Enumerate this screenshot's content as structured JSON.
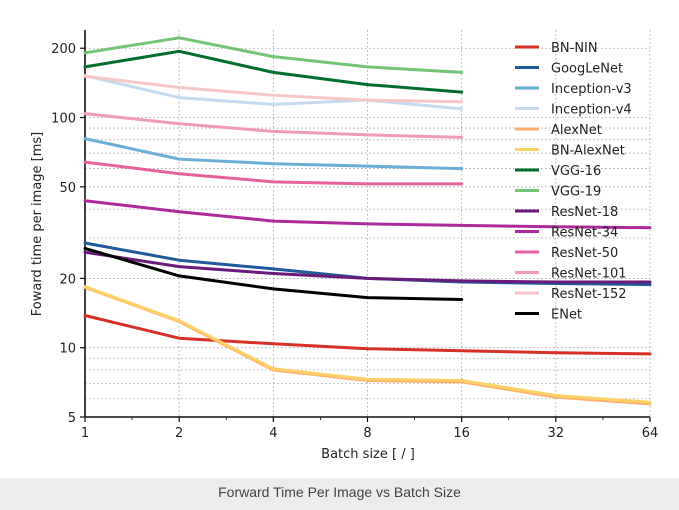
{
  "caption": "Forward Time Per Image vs Batch Size",
  "chart_data": {
    "type": "line",
    "xlabel": "Batch size [ / ]",
    "ylabel": "Foward time per image [ms]",
    "x_scale": "log2",
    "y_scale": "log",
    "x_ticks": [
      1,
      2,
      4,
      8,
      16,
      32,
      64
    ],
    "y_ticks": [
      5,
      10,
      20,
      50,
      100,
      200
    ],
    "xlim": [
      1,
      64
    ],
    "ylim": [
      5,
      240
    ],
    "grid": true,
    "legend_position": "right",
    "series": [
      {
        "name": "BN-NIN",
        "color": "#d73027",
        "x": [
          1,
          2,
          4,
          8,
          16,
          32,
          64
        ],
        "values": [
          13.8,
          11.0,
          10.4,
          9.9,
          9.7,
          9.5,
          9.4
        ]
      },
      {
        "name": "GoogLeNet",
        "color": "#1f5a9c",
        "x": [
          1,
          2,
          4,
          8,
          16,
          32,
          64
        ],
        "values": [
          28.5,
          24.0,
          22.0,
          20.0,
          19.3,
          19.0,
          18.8
        ]
      },
      {
        "name": "Inception-v3",
        "color": "#6baed6",
        "x": [
          1,
          2,
          4,
          8,
          16
        ],
        "values": [
          81,
          66,
          63,
          61.5,
          60
        ]
      },
      {
        "name": "Inception-v4",
        "color": "#c6dbef",
        "x": [
          1,
          2,
          4,
          8,
          16
        ],
        "values": [
          152,
          122,
          114,
          119,
          109
        ]
      },
      {
        "name": "AlexNet",
        "color": "#fdae6b",
        "x": [
          1,
          2,
          4,
          8,
          16,
          32,
          64
        ],
        "values": [
          18.3,
          13.0,
          8.0,
          7.2,
          7.1,
          6.1,
          5.7
        ]
      },
      {
        "name": "BN-AlexNet",
        "color": "#fdd168",
        "x": [
          1,
          2,
          4,
          8,
          16,
          32,
          64
        ],
        "values": [
          18.4,
          13.1,
          8.1,
          7.3,
          7.2,
          6.2,
          5.8
        ]
      },
      {
        "name": "VGG-16",
        "color": "#006d2c",
        "x": [
          1,
          2,
          4,
          8,
          16
        ],
        "values": [
          166,
          194,
          157,
          139,
          129
        ]
      },
      {
        "name": "VGG-19",
        "color": "#74c476",
        "x": [
          1,
          2,
          4,
          8,
          16
        ],
        "values": [
          191,
          222,
          184,
          166,
          157
        ]
      },
      {
        "name": "ResNet-18",
        "color": "#6a1a7a",
        "x": [
          1,
          2,
          4,
          8,
          16,
          32,
          64
        ],
        "values": [
          26.0,
          22.5,
          21.0,
          20.0,
          19.5,
          19.3,
          19.3
        ]
      },
      {
        "name": "ResNet-34",
        "color": "#ae2a9c",
        "x": [
          1,
          2,
          4,
          8,
          16,
          32,
          64
        ],
        "values": [
          43.5,
          39.0,
          35.5,
          34.5,
          34.0,
          33.5,
          33.2
        ]
      },
      {
        "name": "ResNet-50",
        "color": "#e7619b",
        "x": [
          1,
          2,
          4,
          8,
          16
        ],
        "values": [
          64,
          57,
          52.5,
          51.5,
          51.5
        ]
      },
      {
        "name": "ResNet-101",
        "color": "#f09ab8",
        "x": [
          1,
          2,
          4,
          8,
          16
        ],
        "values": [
          104,
          94,
          87,
          84,
          82
        ]
      },
      {
        "name": "ResNet-152",
        "color": "#f7c6c6",
        "x": [
          1,
          2,
          4,
          8,
          16
        ],
        "values": [
          151,
          135,
          125,
          119,
          117
        ]
      },
      {
        "name": "ENet",
        "color": "#000000",
        "x": [
          1,
          2,
          4,
          8,
          16
        ],
        "values": [
          27.0,
          20.5,
          18.0,
          16.5,
          16.2
        ]
      }
    ]
  }
}
